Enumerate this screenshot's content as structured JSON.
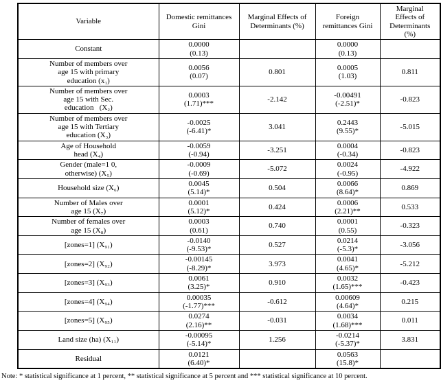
{
  "table": {
    "headers": [
      "Variable",
      "Domestic remittances\nGini",
      "Marginal Effects of\nDeterminants (%)",
      "Foreign\nremittances Gini",
      "Marginal\nEffects of\nDeterminants\n(%)"
    ],
    "rows": [
      {
        "variable": "Constant",
        "domestic": "0.0000\n(0.13)",
        "me1": "",
        "foreign": "0.0000\n(0.13)",
        "me2": ""
      },
      {
        "variable": "Number of members over\nage 15 with primary\neducation (x₁)",
        "domestic": "0.0056\n(0.07)",
        "me1": "0.801",
        "foreign": "0.0005\n(1.03)",
        "me2": "0.811"
      },
      {
        "variable": "Number of members over\nage 15 with Sec.\neducation   (X₂)",
        "domestic": "0.0003\n(1.71)***",
        "me1": "-2.142",
        "foreign": "-0.00491\n(-2.51)*",
        "me2": "-0.823"
      },
      {
        "variable": "Number of members over\nage 15 with Tertiary\neducation (X₃)",
        "domestic": "-0.0025\n(-6.41)*",
        "me1": "3.041",
        "foreign": "0.2443\n(9.55)*",
        "me2": "-5.015"
      },
      {
        "variable": "Age of Household\nhead (X₄)",
        "domestic": "-0.0059\n(-0.94)",
        "me1": "-3.251",
        "foreign": "0.0004\n(-0.34)",
        "me2": "-0.823"
      },
      {
        "variable": "Gender (male=1 0,\notherwise) (X₅)",
        "domestic": "-0.0009\n(-0.69)",
        "me1": "-5.072",
        "foreign": "0.0024\n(-0.95)",
        "me2": "-4.922"
      },
      {
        "variable": "Household size (X₆)",
        "domestic": "0.0045\n(5.14)*",
        "me1": "0.504",
        "foreign": "0.0066\n(8.64)*",
        "me2": "0.869"
      },
      {
        "variable": "Number of Males over\nage 15 (X₇)",
        "domestic": "0.0001\n(5.12)*",
        "me1": "0.424",
        "foreign": "0.0006\n(2.21)**",
        "me2": "0.533"
      },
      {
        "variable": "Number of females over\nage 15 (X₈)",
        "domestic": "0.0003\n(0.61)",
        "me1": "0.740",
        "foreign": "0.0001\n(0.55)",
        "me2": "-0.323"
      },
      {
        "variable": "[zones=1] (X₉₁)",
        "domestic": "-0.0140\n(-9.53)*",
        "me1": "0.527",
        "foreign": "0.0214\n(-5.3)*",
        "me2": "-3.056"
      },
      {
        "variable": "[zones=2] (X₉₂)",
        "domestic": "-0.00145\n(-8.29)*",
        "me1": "3.973",
        "foreign": "0.0041\n(4.65)*",
        "me2": "-5.212"
      },
      {
        "variable": "[zones=3] (X₉₃)",
        "domestic": "0.0061\n(3.25)*",
        "me1": "0.910",
        "foreign": "0.0032\n(1.65)***",
        "me2": "-0.423"
      },
      {
        "variable": "[zones=4] (X₉₄)",
        "domestic": "0.00035\n(-1.77)***",
        "me1": "-0.612",
        "foreign": "0.00609\n(4.64)*",
        "me2": "0.215"
      },
      {
        "variable": "[zones=5] (X₉₅)",
        "domestic": "0.0274\n(2.16)**",
        "me1": "-0.031",
        "foreign": "0.0034\n(1.68)***",
        "me2": "0.011"
      },
      {
        "variable": "Land size (ha) (X₁₁)",
        "domestic": "-0.00095\n(-5.14)*",
        "me1": "1.256",
        "foreign": "-0.0214\n(-5.37)*",
        "me2": "3.831"
      },
      {
        "variable": "Residual",
        "domestic": "0.0121\n(6.40)*",
        "me1": "",
        "foreign": "0.0563\n(15.8)*",
        "me2": ""
      }
    ]
  },
  "note": "Note: * statistical significance at 1 percent, ** statistical significance at 5 percent and *** statistical significance at 10 percent."
}
